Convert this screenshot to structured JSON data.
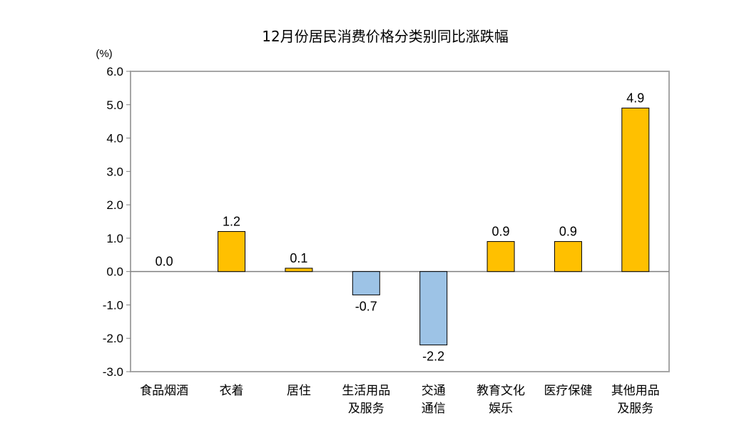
{
  "chart_data": {
    "type": "bar",
    "title": "12月份居民消费价格分类别同比涨跌幅",
    "unit_label": "(%)",
    "ylim": [
      -3.0,
      6.0
    ],
    "y_ticks": [
      "6.0",
      "5.0",
      "4.0",
      "3.0",
      "2.0",
      "1.0",
      "0.0",
      "-1.0",
      "-2.0",
      "-3.0"
    ],
    "categories": [
      [
        "食品烟酒"
      ],
      [
        "衣着"
      ],
      [
        "居住"
      ],
      [
        "生活用品",
        "及服务"
      ],
      [
        "交通",
        "通信"
      ],
      [
        "教育文化",
        "娱乐"
      ],
      [
        "医疗保健"
      ],
      [
        "其他用品",
        "及服务"
      ]
    ],
    "values": [
      0.0,
      1.2,
      0.1,
      -0.7,
      -2.2,
      0.9,
      0.9,
      4.9
    ],
    "value_labels": [
      "0.0",
      "1.2",
      "0.1",
      "-0.7",
      "-2.2",
      "0.9",
      "0.9",
      "4.9"
    ],
    "grid": false,
    "legend": "none",
    "colors": {
      "positive": "#FFC000",
      "negative": "#9DC3E6",
      "bar_stroke": "#000000",
      "axis": "#808080",
      "frame": "#A6A6A6"
    }
  }
}
